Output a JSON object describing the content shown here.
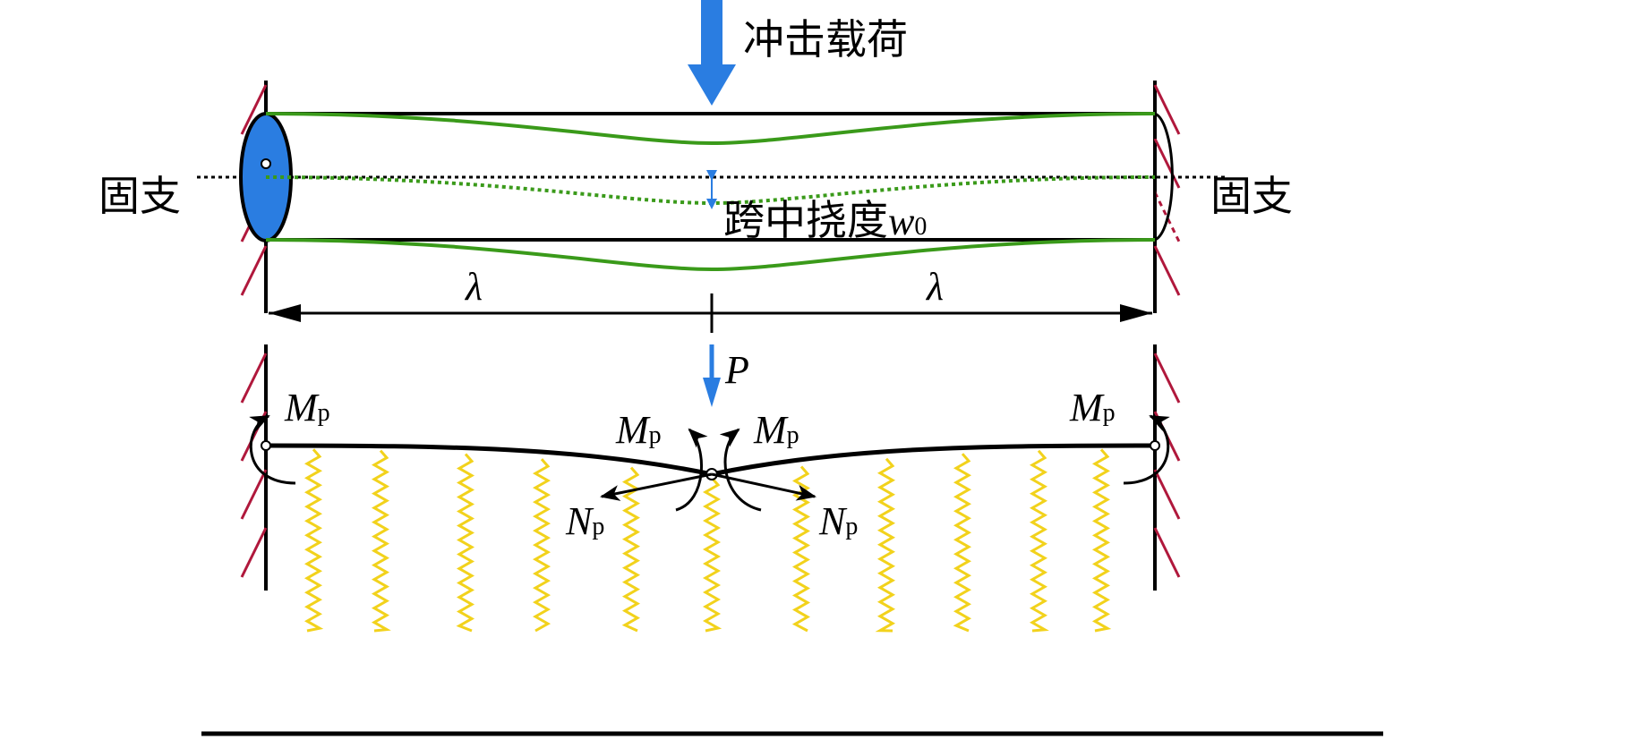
{
  "labels": {
    "impact_load": "冲击载荷",
    "fixed_left": "固支",
    "fixed_right": "固支",
    "midspan_deflection": "跨中挠度",
    "w": "w",
    "w_sub": "0",
    "lambda_left": "λ",
    "lambda_right": "λ",
    "P": "P",
    "M": "M",
    "N": "N",
    "p_sub": "p"
  },
  "colors": {
    "load_arrow": "#2a7de1",
    "beam_deflection": "#3a9a1a",
    "wall_hatch": "#b0183c",
    "spring": "#f2d21c",
    "beam": "#000000"
  }
}
